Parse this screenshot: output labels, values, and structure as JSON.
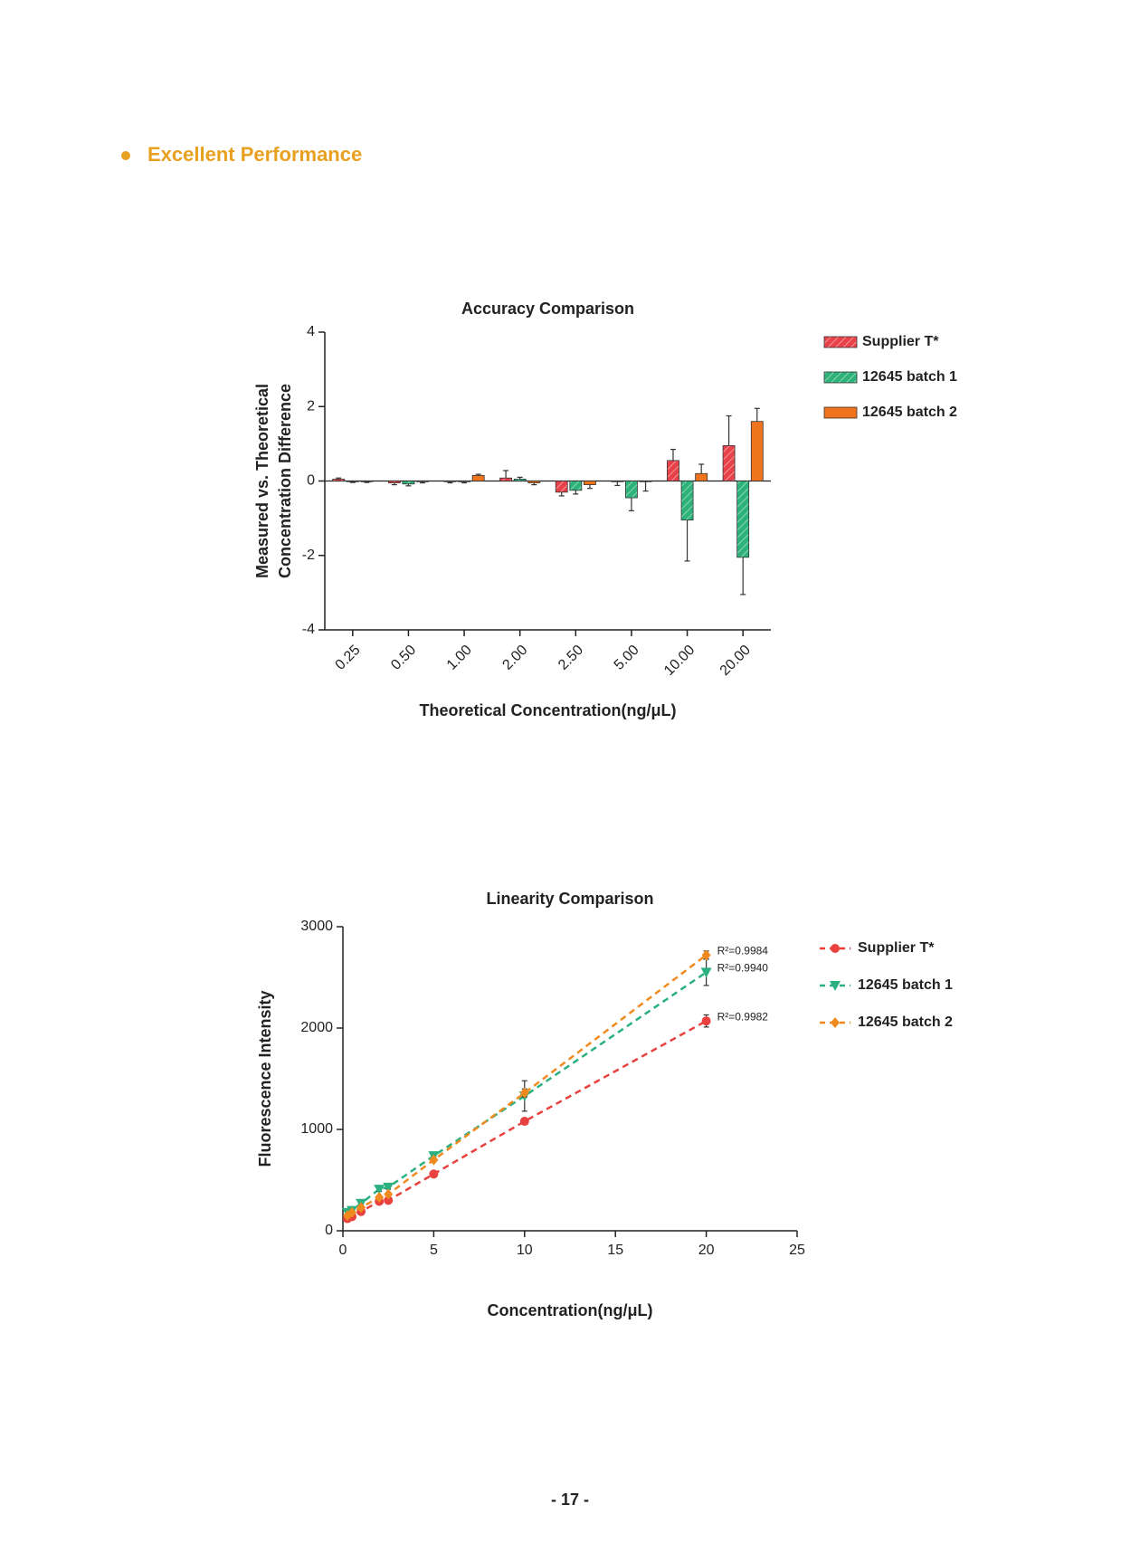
{
  "heading": "Excellent Performance",
  "page_number": "- 17 -",
  "chart_data": [
    {
      "type": "bar",
      "title": "Accuracy Comparison",
      "xlabel": "Theoretical Concentration(ng/μL)",
      "ylabel": [
        "Measured vs. Theoretical",
        "Concentration Difference"
      ],
      "categories": [
        "0.25",
        "0.50",
        "1.00",
        "2.00",
        "2.50",
        "5.00",
        "10.00",
        "20.00"
      ],
      "series": [
        {
          "name": "Supplier T*",
          "color": "#e8414a",
          "values": [
            0.05,
            -0.05,
            -0.02,
            0.08,
            -0.3,
            -0.02,
            0.55,
            0.95
          ],
          "errors": [
            0.03,
            0.05,
            0.03,
            0.2,
            0.1,
            0.1,
            0.3,
            0.8
          ]
        },
        {
          "name": "12645 batch 1",
          "color": "#2db37a",
          "values": [
            -0.02,
            -0.08,
            -0.02,
            0.05,
            -0.25,
            -0.45,
            -1.05,
            -2.05
          ],
          "errors": [
            0.02,
            0.05,
            0.03,
            0.05,
            0.1,
            0.35,
            1.1,
            1.0
          ]
        },
        {
          "name": "12645 batch 2",
          "color": "#f0731e",
          "values": [
            -0.02,
            -0.02,
            0.15,
            -0.05,
            -0.1,
            -0.02,
            0.2,
            1.6
          ],
          "errors": [
            0.02,
            0.03,
            0.03,
            0.05,
            0.1,
            0.25,
            0.25,
            0.35
          ]
        }
      ],
      "ylim": [
        -4,
        4
      ],
      "yticks": [
        -4,
        -2,
        0,
        2,
        4
      ],
      "legend": "right"
    },
    {
      "type": "line",
      "title": "Linearity Comparison",
      "xlabel": "Concentration(ng/μL)",
      "ylabel": "Fluorescence Intensity",
      "x": [
        0.25,
        0.5,
        1,
        2,
        2.5,
        5,
        10,
        20
      ],
      "series": [
        {
          "name": "Supplier T*",
          "color": "#e8413e",
          "marker": "circle",
          "label": "R²=0.9982",
          "values": [
            120,
            140,
            190,
            290,
            300,
            560,
            1080,
            2070
          ],
          "errors": [
            10,
            10,
            10,
            10,
            10,
            20,
            30,
            60
          ]
        },
        {
          "name": "12645 batch 1",
          "color": "#2bb07f",
          "marker": "triangle",
          "label": "R²=0.9940",
          "values": [
            180,
            200,
            270,
            410,
            430,
            740,
            1330,
            2550
          ],
          "errors": [
            10,
            10,
            10,
            20,
            20,
            30,
            150,
            130
          ]
        },
        {
          "name": "12645 batch 2",
          "color": "#f08a1e",
          "marker": "diamond",
          "label": "R²=0.9984",
          "values": [
            150,
            180,
            230,
            330,
            360,
            700,
            1360,
            2720
          ],
          "errors": [
            10,
            10,
            10,
            10,
            10,
            20,
            40,
            40
          ]
        }
      ],
      "xlim": [
        0,
        25
      ],
      "xticks": [
        0,
        5,
        10,
        15,
        20,
        25
      ],
      "ylim": [
        0,
        3000
      ],
      "yticks": [
        0,
        1000,
        2000,
        3000
      ],
      "legend": "right"
    }
  ]
}
